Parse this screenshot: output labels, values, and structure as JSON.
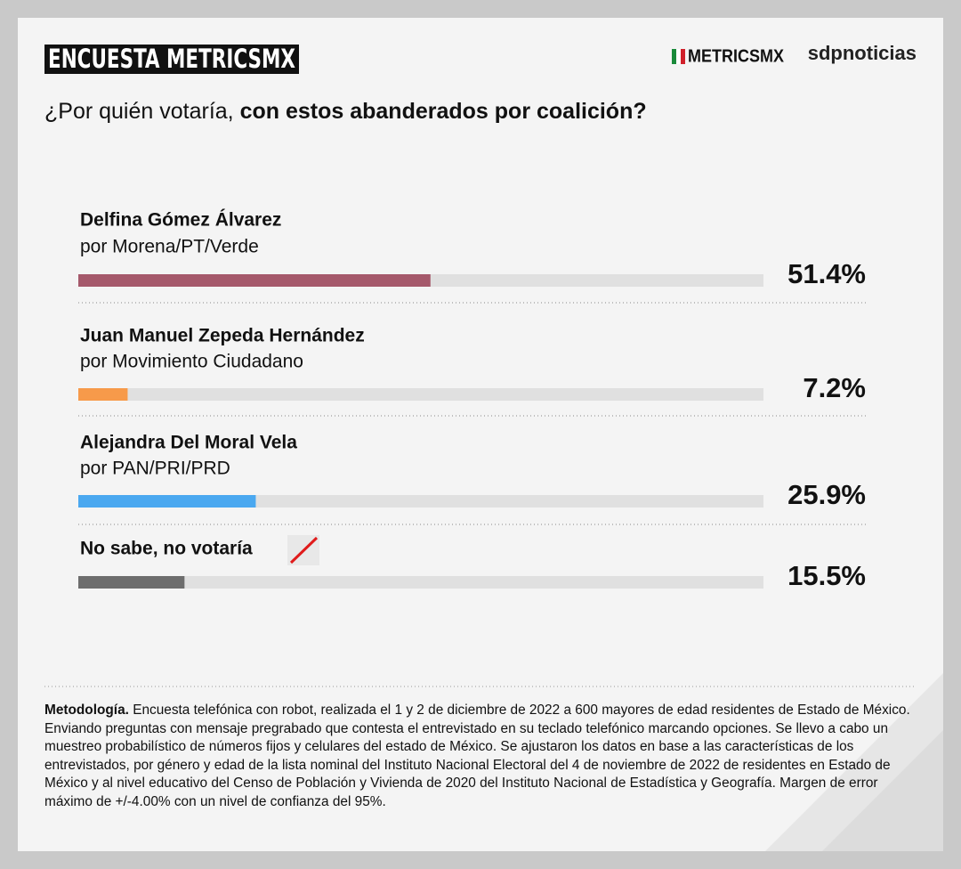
{
  "logos": [
    "METRICSMX",
    "sdpnoticias"
  ],
  "chart_data": {
    "type": "bar",
    "orientation": "horizontal",
    "title": "ENCUESTA METRICSMX",
    "subtitle": [
      "¿Por quién votaría,",
      "con estos abanderados por coalición?"
    ],
    "categories": [
      "Delfina Gómez Álvarez",
      "Juan Manuel Zepeda Hernández",
      "Alejandra Del Moral Vela",
      "No sabe, no votaría"
    ],
    "category_subtitles": [
      "por Morena/PT/Verde",
      "por Movimiento Ciudadano",
      "por PAN/PRI/PRD",
      null
    ],
    "values": [
      51.4,
      7.2,
      25.9,
      15.5
    ],
    "value_labels": [
      "51.4%",
      "7.2%",
      "25.9%",
      "15.5%"
    ],
    "colors": [
      "#a5596b",
      "#f79a4a",
      "#4aa8f0",
      "#6d6d6d"
    ],
    "track_color": "#e0e0e0",
    "xlim": [
      0,
      100
    ]
  },
  "methodology": {
    "label": "Metodología.",
    "text": "Encuesta telefónica con robot, realizada el 1 y 2 de diciembre de 2022 a 600 mayores de edad residentes de Estado de México. Enviando preguntas con mensaje pregrabado que contesta el entrevistado en su teclado telefónico marcando opciones. Se llevo a cabo un muestreo probabilístico de números fijos y celulares del estado de México. Se ajustaron los datos en base a las características de los entrevistados, por género y edad de la lista nominal del Instituto Nacional Electoral del 4 de noviembre de 2022 de residentes en Estado de México y al nivel educativo del Censo de Población y Vivienda de 2020 del Instituto Nacional de Estadística y Geografía. Margen de error máximo de +/-4.00% con un nivel de confianza del 95%."
  }
}
